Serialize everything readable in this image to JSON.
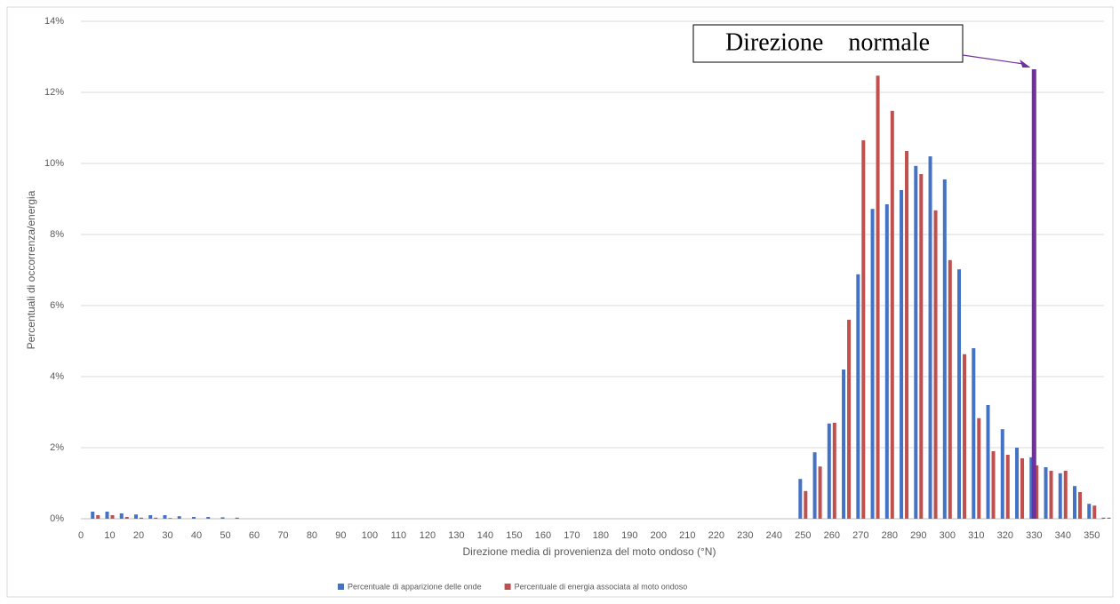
{
  "chart_data": {
    "type": "bar",
    "x_label": "Direzione media  di provenienza del moto ondoso (°N)",
    "y_label": "Percentuali di occorrenza/energia",
    "x": [
      5,
      10,
      15,
      20,
      25,
      30,
      35,
      40,
      45,
      50,
      55,
      60,
      65,
      70,
      75,
      80,
      85,
      90,
      95,
      100,
      105,
      110,
      115,
      120,
      125,
      130,
      135,
      140,
      145,
      150,
      155,
      160,
      165,
      170,
      175,
      180,
      185,
      190,
      195,
      200,
      205,
      210,
      215,
      220,
      225,
      230,
      235,
      240,
      245,
      250,
      255,
      260,
      265,
      270,
      275,
      280,
      285,
      290,
      295,
      300,
      305,
      310,
      315,
      320,
      325,
      330,
      335,
      340,
      345,
      350,
      355
    ],
    "series": [
      {
        "name": "Percentuale di apparizione delle onde",
        "color": "#4472c4",
        "values": [
          0.2,
          0.2,
          0.15,
          0.12,
          0.1,
          0.1,
          0.07,
          0.05,
          0.05,
          0.04,
          0.03,
          0,
          0,
          0,
          0,
          0,
          0,
          0,
          0,
          0,
          0,
          0,
          0,
          0,
          0,
          0,
          0,
          0,
          0,
          0,
          0,
          0,
          0,
          0,
          0,
          0,
          0,
          0,
          0,
          0,
          0,
          0,
          0,
          0,
          0,
          0,
          0,
          0,
          0,
          1.12,
          1.87,
          2.68,
          4.2,
          6.88,
          8.72,
          8.85,
          9.25,
          9.93,
          10.2,
          9.55,
          7.02,
          4.8,
          3.2,
          2.52,
          2.0,
          1.73,
          1.45,
          1.28,
          0.92,
          0.42,
          0.03
        ]
      },
      {
        "name": "Percentuale di energia associata al moto ondoso",
        "color": "#c0504d",
        "values": [
          0.1,
          0.1,
          0.05,
          0.03,
          0.03,
          0.02,
          0,
          0,
          0,
          0,
          0,
          0,
          0,
          0,
          0,
          0,
          0,
          0,
          0,
          0,
          0,
          0,
          0,
          0,
          0,
          0,
          0,
          0,
          0,
          0,
          0,
          0,
          0,
          0,
          0,
          0,
          0,
          0,
          0,
          0,
          0,
          0,
          0,
          0,
          0,
          0,
          0,
          0,
          0,
          0.78,
          1.47,
          2.7,
          5.6,
          10.65,
          12.47,
          11.48,
          10.35,
          9.7,
          8.68,
          7.28,
          4.63,
          2.83,
          1.9,
          1.8,
          1.7,
          1.5,
          1.35,
          1.35,
          0.75,
          0.37,
          0.03
        ]
      }
    ],
    "xlim": [
      0,
      357
    ],
    "xticks": [
      0,
      10,
      20,
      30,
      40,
      50,
      60,
      70,
      80,
      90,
      100,
      110,
      120,
      130,
      140,
      150,
      160,
      170,
      180,
      190,
      200,
      210,
      220,
      230,
      240,
      250,
      260,
      270,
      280,
      290,
      300,
      310,
      320,
      330,
      340,
      350
    ],
    "ylim": [
      0,
      14
    ],
    "yticks": [
      {
        "value": 0,
        "label": "0%"
      },
      {
        "value": 2,
        "label": "2%"
      },
      {
        "value": 4,
        "label": "4%"
      },
      {
        "value": 6,
        "label": "6%"
      },
      {
        "value": 8,
        "label": "8%"
      },
      {
        "value": 10,
        "label": "10%"
      },
      {
        "value": 12,
        "label": "12%"
      },
      {
        "value": 14,
        "label": "14%"
      }
    ],
    "grid": true,
    "legend": "bottom",
    "annotations": [
      {
        "text": "Direzione    normale",
        "x": 330,
        "y": 12.65,
        "color": "#7030a0"
      }
    ]
  }
}
